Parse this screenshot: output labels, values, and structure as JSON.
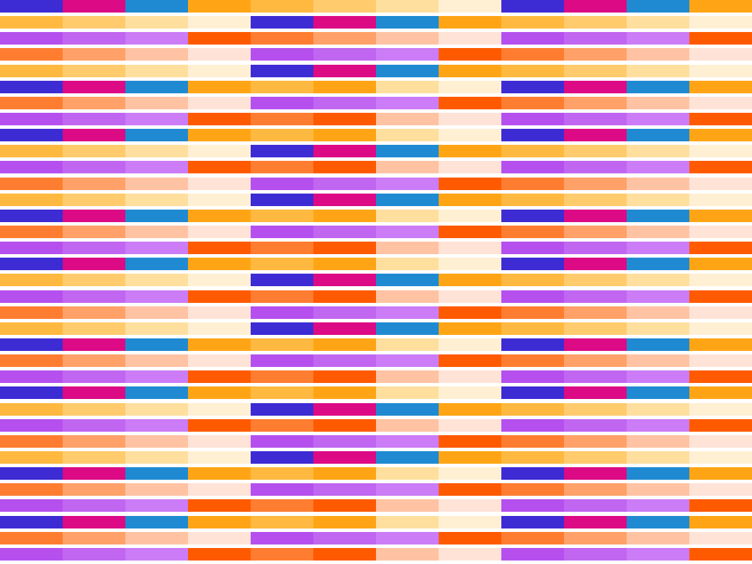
{
  "palettes": {
    "A": [
      "#3d2bd4",
      "#dc0a84",
      "#1f8ad2",
      "#ffa515"
    ],
    "B": [
      "#ffb940",
      "#ffcb6d",
      "#ffdf9e",
      "#fff0d4"
    ],
    "C": [
      "#b550ee",
      "#c066f0",
      "#cb7cf6",
      "#ff5a00"
    ],
    "D": [
      "#ff7d30",
      "#ffa168",
      "#ffc3a3",
      "#ffe3d7"
    ],
    "E": [
      "#ffb940",
      "#ffa515",
      "#ffdf9e",
      "#fff0d4"
    ],
    "F": [
      "#ff7d30",
      "#ff5a00",
      "#ffc3a3",
      "#ffe3d7"
    ]
  },
  "rows": [
    {
      "outer": "A",
      "middle": "B"
    },
    {
      "outer": "B",
      "middle": "A"
    },
    {
      "outer": "C",
      "middle": "D"
    },
    {
      "outer": "D",
      "middle": "C"
    },
    {
      "outer": "B",
      "middle": "A"
    },
    {
      "outer": "A",
      "middle": "E"
    },
    {
      "outer": "D",
      "middle": "C"
    },
    {
      "outer": "C",
      "middle": "F"
    },
    {
      "outer": "A",
      "middle": "E"
    },
    {
      "outer": "B",
      "middle": "A"
    },
    {
      "outer": "C",
      "middle": "F"
    },
    {
      "outer": "D",
      "middle": "C"
    },
    {
      "outer": "B",
      "middle": "A"
    },
    {
      "outer": "A",
      "middle": "E"
    },
    {
      "outer": "D",
      "middle": "C"
    },
    {
      "outer": "C",
      "middle": "F"
    },
    {
      "outer": "A",
      "middle": "E"
    },
    {
      "outer": "B",
      "middle": "A"
    },
    {
      "outer": "C",
      "middle": "F"
    },
    {
      "outer": "D",
      "middle": "C"
    },
    {
      "outer": "B",
      "middle": "A"
    },
    {
      "outer": "A",
      "middle": "E"
    },
    {
      "outer": "D",
      "middle": "C"
    },
    {
      "outer": "C",
      "middle": "F"
    },
    {
      "outer": "A",
      "middle": "E"
    },
    {
      "outer": "B",
      "middle": "A"
    },
    {
      "outer": "C",
      "middle": "F"
    },
    {
      "outer": "D",
      "middle": "C"
    },
    {
      "outer": "B",
      "middle": "A"
    },
    {
      "outer": "A",
      "middle": "E"
    },
    {
      "outer": "D",
      "middle": "C"
    },
    {
      "outer": "C",
      "middle": "F"
    },
    {
      "outer": "A",
      "middle": "E"
    },
    {
      "outer": "D",
      "middle": "C"
    },
    {
      "outer": "C",
      "middle": "F"
    }
  ]
}
